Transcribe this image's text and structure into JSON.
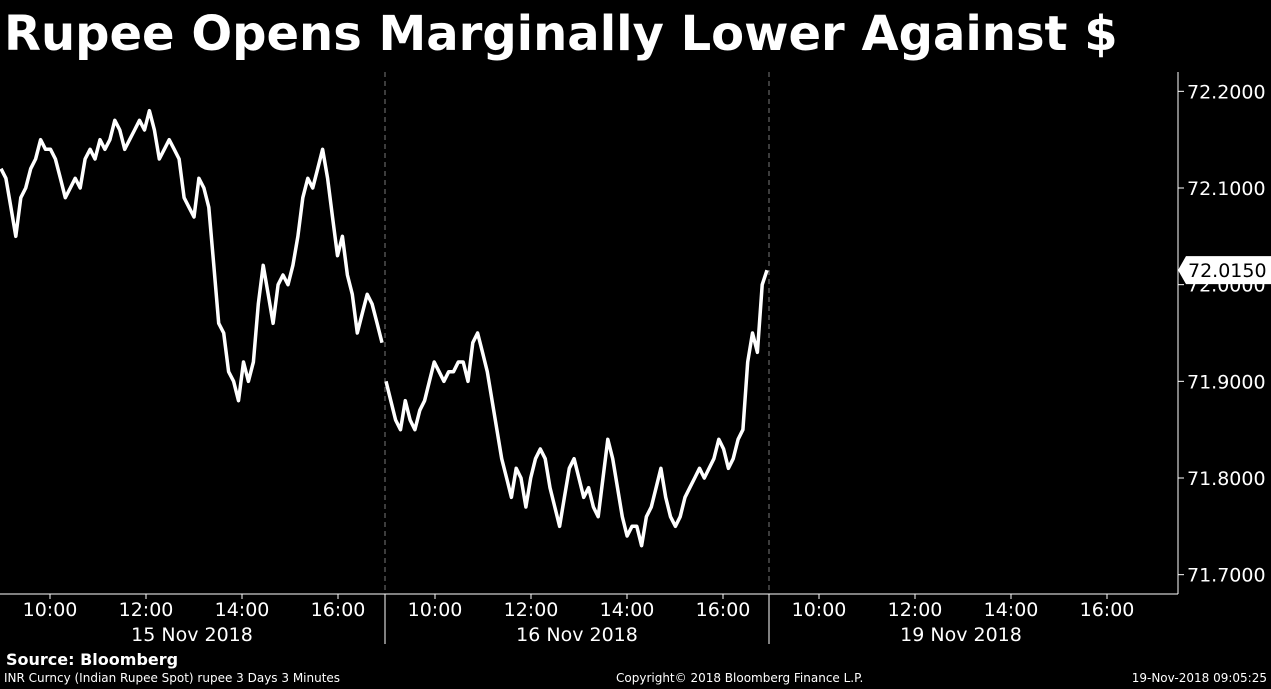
{
  "title": "Rupee Opens Marginally Lower Against $",
  "source": "Source: Bloomberg",
  "footer": {
    "left": "INR Curncy (Indian Rupee Spot) rupee 3 Days 3 Minutes",
    "center": "Copyright© 2018 Bloomberg Finance L.P.",
    "right": "19-Nov-2018 09:05:25"
  },
  "colors": {
    "background": "#000000",
    "line": "#ffffff",
    "grid": "#777777"
  },
  "chart_data": {
    "type": "line",
    "title": "Rupee Opens Marginally Lower Against $",
    "ylim": [
      71.68,
      72.22
    ],
    "y_ticks": [
      "72.2000",
      "72.1000",
      "72.0000",
      "71.9000",
      "71.8000",
      "71.7000"
    ],
    "y_tick_values": [
      72.2,
      72.1,
      72.0,
      71.9,
      71.8,
      71.7
    ],
    "days": [
      {
        "label": "15 Nov 2018",
        "hours": [
          "10:00",
          "12:00",
          "14:00",
          "16:00"
        ]
      },
      {
        "label": "16 Nov 2018",
        "hours": [
          "10:00",
          "12:00",
          "14:00",
          "16:00"
        ]
      },
      {
        "label": "19 Nov 2018",
        "hours": [
          "10:00",
          "12:00",
          "14:00",
          "16:00"
        ]
      }
    ],
    "last_value_label": "72.0150",
    "last_value": 72.015,
    "grid": "vertical dashed day separators",
    "series": [
      {
        "values": [
          [
            72.12,
            72.11,
            72.08,
            72.05,
            72.09,
            72.1,
            72.12,
            72.13,
            72.15,
            72.14,
            72.14,
            72.13,
            72.11,
            72.09,
            72.1,
            72.11,
            72.1,
            72.13,
            72.14,
            72.13,
            72.15,
            72.14,
            72.15,
            72.17,
            72.16,
            72.14,
            72.15,
            72.16,
            72.17,
            72.16,
            72.18,
            72.16,
            72.13,
            72.14,
            72.15,
            72.14,
            72.13,
            72.09,
            72.08,
            72.07,
            72.11,
            72.1,
            72.08,
            72.02,
            71.96,
            71.95,
            71.91,
            71.9,
            71.88,
            71.92,
            71.9,
            71.92,
            71.98,
            72.02,
            71.99,
            71.96,
            72.0,
            72.01,
            72.0,
            72.02,
            72.05,
            72.09,
            72.11,
            72.1,
            72.12,
            72.14,
            72.11,
            72.07,
            72.03,
            72.05,
            72.01,
            71.99,
            71.95,
            71.97,
            71.99,
            71.98,
            71.96,
            71.94
          ],
          [
            71.9,
            71.88,
            71.86,
            71.85,
            71.88,
            71.86,
            71.85,
            71.87,
            71.88,
            71.9,
            71.92,
            71.91,
            71.9,
            71.91,
            71.91,
            71.92,
            71.92,
            71.9,
            71.94,
            71.95,
            71.93,
            71.91,
            71.88,
            71.85,
            71.82,
            71.8,
            71.78,
            71.81,
            71.8,
            71.77,
            71.8,
            71.82,
            71.83,
            71.82,
            71.79,
            71.77,
            71.75,
            71.78,
            71.81,
            71.82,
            71.8,
            71.78,
            71.79,
            71.77,
            71.76,
            71.8,
            71.84,
            71.82,
            71.79,
            71.76,
            71.74,
            71.75,
            71.75,
            71.73,
            71.76,
            71.77,
            71.79,
            71.81,
            71.78,
            71.76,
            71.75,
            71.76,
            71.78,
            71.79,
            71.8,
            71.81,
            71.8,
            71.81,
            71.82,
            71.84,
            71.83,
            71.81,
            71.82,
            71.84,
            71.85,
            71.92,
            71.95,
            71.93,
            72.0,
            72.015
          ]
        ]
      }
    ]
  }
}
